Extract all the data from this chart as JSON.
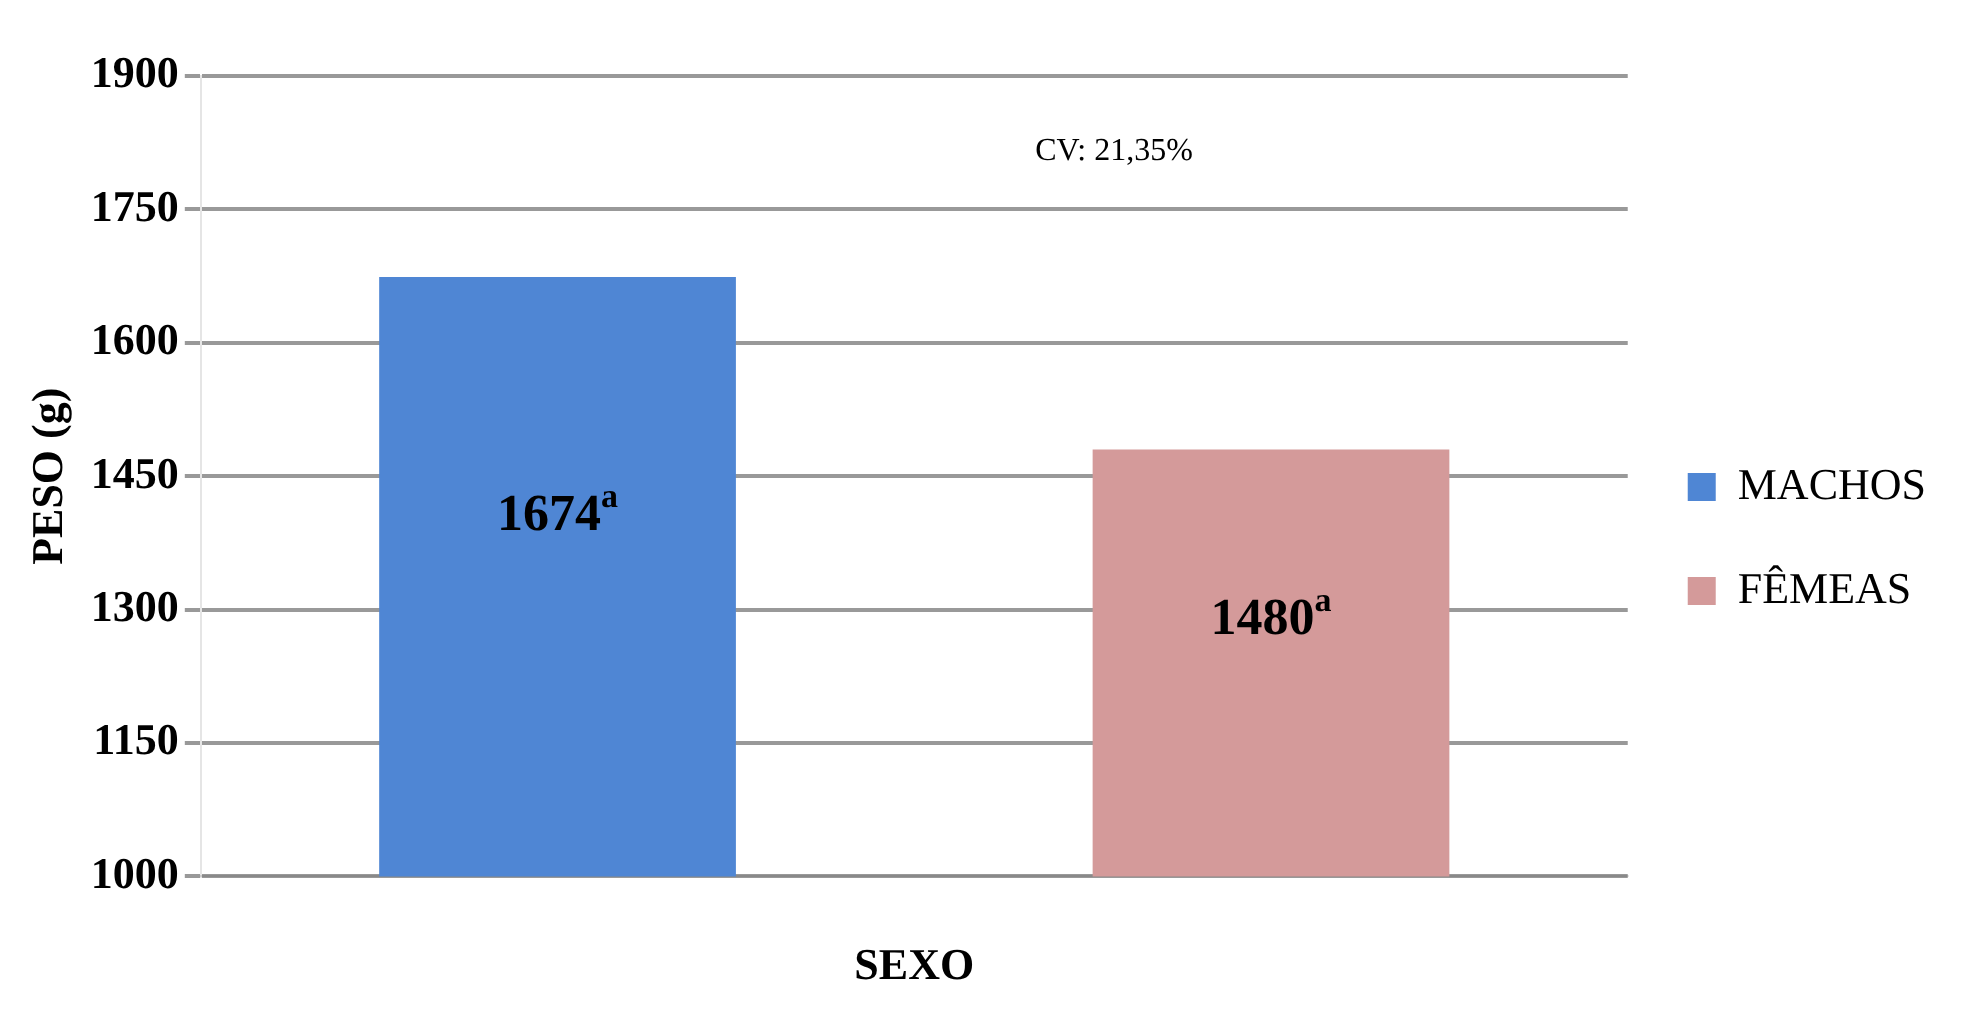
{
  "chart_data": {
    "type": "bar",
    "xlabel": "SEXO",
    "ylabel": "PESO (g)",
    "categories": [
      null
    ],
    "series": [
      {
        "name": "MACHOS",
        "color": "#4f86d4",
        "values": [
          1674
        ],
        "value_labels": [
          "1674$^{a}$"
        ]
      },
      {
        "name": "FÊMEAS",
        "color": "#d49a9a",
        "values": [
          1480
        ],
        "value_labels": [
          "1480$^{a}$"
        ]
      }
    ],
    "ylim": [
      1000,
      1900
    ],
    "yticks": [
      1000,
      1150,
      1300,
      1450,
      1600,
      1750,
      1900
    ],
    "grid": "y",
    "legend": "right",
    "annotations": [
      "CV: 21,35%"
    ]
  }
}
